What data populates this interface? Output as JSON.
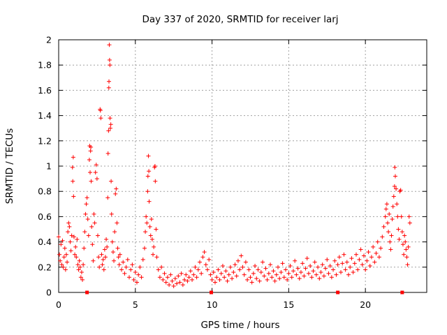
{
  "chart_data": {
    "type": "scatter",
    "title": "Day 337 of 2020, SRMTID for receiver larj",
    "xlabel": "GPS time / hours",
    "ylabel": "SRMTID / TECUs",
    "xlim": [
      0,
      24
    ],
    "ylim": [
      0,
      2
    ],
    "xticks": [
      0,
      5,
      10,
      15,
      20
    ],
    "xtick_labels": [
      "0",
      "5",
      "10",
      "15",
      "20"
    ],
    "yticks": [
      0,
      0.2,
      0.4,
      0.6,
      0.8,
      1.0,
      1.2,
      1.4,
      1.6,
      1.8,
      2.0
    ],
    "ytick_labels": [
      "0",
      "0.2",
      "0.4",
      "0.6",
      "0.8",
      "1",
      "1.2",
      "1.4",
      "1.6",
      "1.8",
      "2"
    ],
    "grid": true,
    "marker": "+",
    "color": "#ff0000",
    "x_axis_markers": [
      1.85,
      9.95,
      18.2,
      22.4
    ],
    "series": [
      {
        "name": "SRMTID",
        "points": [
          [
            0.0,
            0.44
          ],
          [
            0.05,
            0.3
          ],
          [
            0.1,
            0.25
          ],
          [
            0.15,
            0.38
          ],
          [
            0.2,
            0.22
          ],
          [
            0.25,
            0.41
          ],
          [
            0.3,
            0.2
          ],
          [
            0.35,
            0.28
          ],
          [
            0.4,
            0.35
          ],
          [
            0.45,
            0.18
          ],
          [
            0.5,
            0.3
          ],
          [
            0.55,
            0.24
          ],
          [
            0.6,
            0.48
          ],
          [
            0.65,
            0.55
          ],
          [
            0.7,
            0.52
          ],
          [
            0.75,
            0.4
          ],
          [
            0.8,
            0.33
          ],
          [
            0.85,
            0.45
          ],
          [
            0.9,
            0.99
          ],
          [
            0.92,
            0.88
          ],
          [
            0.95,
            1.07
          ],
          [
            0.97,
            0.76
          ],
          [
            1.0,
            0.44
          ],
          [
            1.05,
            0.3
          ],
          [
            1.1,
            0.36
          ],
          [
            1.15,
            0.28
          ],
          [
            1.2,
            0.42
          ],
          [
            1.25,
            0.22
          ],
          [
            1.3,
            0.18
          ],
          [
            1.35,
            0.25
          ],
          [
            1.4,
            0.2
          ],
          [
            1.45,
            0.12
          ],
          [
            1.5,
            0.16
          ],
          [
            1.55,
            0.1
          ],
          [
            1.6,
            0.22
          ],
          [
            1.65,
            0.35
          ],
          [
            1.7,
            0.48
          ],
          [
            1.75,
            0.62
          ],
          [
            1.8,
            0.7
          ],
          [
            1.85,
            0.75
          ],
          [
            1.9,
            0.58
          ],
          [
            1.95,
            0.45
          ],
          [
            2.0,
            1.05
          ],
          [
            2.02,
            1.16
          ],
          [
            2.05,
            0.95
          ],
          [
            2.08,
            1.12
          ],
          [
            2.1,
            1.15
          ],
          [
            2.12,
            0.88
          ],
          [
            2.15,
            0.52
          ],
          [
            2.2,
            0.38
          ],
          [
            2.25,
            0.25
          ],
          [
            2.3,
            0.62
          ],
          [
            2.35,
            0.55
          ],
          [
            2.4,
            0.95
          ],
          [
            2.45,
            1.01
          ],
          [
            2.5,
            0.9
          ],
          [
            2.55,
            0.45
          ],
          [
            2.6,
            0.28
          ],
          [
            2.65,
            0.2
          ],
          [
            2.7,
            1.45
          ],
          [
            2.72,
            1.44
          ],
          [
            2.75,
            1.38
          ],
          [
            2.8,
            0.3
          ],
          [
            2.85,
            0.22
          ],
          [
            2.9,
            0.26
          ],
          [
            2.95,
            0.18
          ],
          [
            3.0,
            0.34
          ],
          [
            3.05,
            0.28
          ],
          [
            3.1,
            0.42
          ],
          [
            3.15,
            0.36
          ],
          [
            3.2,
            0.75
          ],
          [
            3.22,
            1.1
          ],
          [
            3.25,
            1.28
          ],
          [
            3.27,
            1.62
          ],
          [
            3.28,
            1.67
          ],
          [
            3.3,
            1.96
          ],
          [
            3.32,
            1.84
          ],
          [
            3.34,
            1.8
          ],
          [
            3.35,
            1.38
          ],
          [
            3.37,
            1.3
          ],
          [
            3.4,
            1.33
          ],
          [
            3.42,
            0.88
          ],
          [
            3.45,
            0.62
          ],
          [
            3.5,
            0.4
          ],
          [
            3.55,
            0.32
          ],
          [
            3.6,
            0.25
          ],
          [
            3.65,
            0.48
          ],
          [
            3.7,
            0.78
          ],
          [
            3.75,
            0.82
          ],
          [
            3.8,
            0.55
          ],
          [
            3.85,
            0.35
          ],
          [
            3.9,
            0.28
          ],
          [
            3.95,
            0.22
          ],
          [
            4.0,
            0.3
          ],
          [
            4.1,
            0.18
          ],
          [
            4.2,
            0.24
          ],
          [
            4.3,
            0.15
          ],
          [
            4.4,
            0.2
          ],
          [
            4.5,
            0.26
          ],
          [
            4.6,
            0.12
          ],
          [
            4.7,
            0.18
          ],
          [
            4.8,
            0.22
          ],
          [
            4.9,
            0.1
          ],
          [
            5.0,
            0.16
          ],
          [
            5.1,
            0.08
          ],
          [
            5.2,
            0.14
          ],
          [
            5.3,
            0.2
          ],
          [
            5.4,
            0.12
          ],
          [
            5.5,
            0.26
          ],
          [
            5.6,
            0.35
          ],
          [
            5.65,
            0.48
          ],
          [
            5.7,
            0.6
          ],
          [
            5.75,
            0.55
          ],
          [
            5.8,
            0.8
          ],
          [
            5.82,
            0.92
          ],
          [
            5.85,
            1.08
          ],
          [
            5.88,
            0.96
          ],
          [
            5.9,
            0.72
          ],
          [
            5.95,
            0.52
          ],
          [
            6.0,
            0.45
          ],
          [
            6.05,
            0.58
          ],
          [
            6.1,
            0.42
          ],
          [
            6.15,
            0.3
          ],
          [
            6.2,
            0.36
          ],
          [
            6.25,
            0.99
          ],
          [
            6.28,
            1.0
          ],
          [
            6.3,
            0.88
          ],
          [
            6.35,
            0.5
          ],
          [
            6.4,
            0.28
          ],
          [
            6.5,
            0.18
          ],
          [
            6.6,
            0.12
          ],
          [
            6.7,
            0.2
          ],
          [
            6.8,
            0.1
          ],
          [
            6.9,
            0.15
          ],
          [
            7.0,
            0.08
          ],
          [
            7.1,
            0.12
          ],
          [
            7.2,
            0.06
          ],
          [
            7.3,
            0.14
          ],
          [
            7.4,
            0.09
          ],
          [
            7.5,
            0.05
          ],
          [
            7.6,
            0.11
          ],
          [
            7.7,
            0.07
          ],
          [
            7.8,
            0.13
          ],
          [
            7.9,
            0.08
          ],
          [
            8.0,
            0.15
          ],
          [
            8.1,
            0.06
          ],
          [
            8.2,
            0.1
          ],
          [
            8.3,
            0.14
          ],
          [
            8.4,
            0.09
          ],
          [
            8.5,
            0.12
          ],
          [
            8.6,
            0.17
          ],
          [
            8.7,
            0.1
          ],
          [
            8.8,
            0.14
          ],
          [
            8.9,
            0.2
          ],
          [
            9.0,
            0.12
          ],
          [
            9.1,
            0.18
          ],
          [
            9.2,
            0.24
          ],
          [
            9.3,
            0.15
          ],
          [
            9.4,
            0.28
          ],
          [
            9.5,
            0.32
          ],
          [
            9.6,
            0.22
          ],
          [
            9.7,
            0.18
          ],
          [
            9.8,
            0.26
          ],
          [
            9.9,
            0.14
          ],
          [
            10.0,
            0.1
          ],
          [
            10.1,
            0.16
          ],
          [
            10.2,
            0.08
          ],
          [
            10.3,
            0.12
          ],
          [
            10.4,
            0.18
          ],
          [
            10.5,
            0.1
          ],
          [
            10.6,
            0.15
          ],
          [
            10.7,
            0.21
          ],
          [
            10.8,
            0.12
          ],
          [
            10.9,
            0.17
          ],
          [
            11.0,
            0.09
          ],
          [
            11.1,
            0.14
          ],
          [
            11.2,
            0.2
          ],
          [
            11.3,
            0.11
          ],
          [
            11.4,
            0.16
          ],
          [
            11.5,
            0.22
          ],
          [
            11.6,
            0.13
          ],
          [
            11.7,
            0.25
          ],
          [
            11.8,
            0.18
          ],
          [
            11.9,
            0.29
          ],
          [
            12.0,
            0.2
          ],
          [
            12.1,
            0.14
          ],
          [
            12.2,
            0.24
          ],
          [
            12.3,
            0.1
          ],
          [
            12.4,
            0.18
          ],
          [
            12.5,
            0.12
          ],
          [
            12.6,
            0.08
          ],
          [
            12.7,
            0.15
          ],
          [
            12.8,
            0.21
          ],
          [
            12.9,
            0.11
          ],
          [
            13.0,
            0.18
          ],
          [
            13.1,
            0.09
          ],
          [
            13.2,
            0.16
          ],
          [
            13.3,
            0.24
          ],
          [
            13.4,
            0.13
          ],
          [
            13.5,
            0.19
          ],
          [
            13.6,
            0.1
          ],
          [
            13.7,
            0.15
          ],
          [
            13.8,
            0.22
          ],
          [
            13.9,
            0.12
          ],
          [
            14.0,
            0.17
          ],
          [
            14.1,
            0.09
          ],
          [
            14.2,
            0.14
          ],
          [
            14.3,
            0.2
          ],
          [
            14.4,
            0.11
          ],
          [
            14.5,
            0.16
          ],
          [
            14.6,
            0.23
          ],
          [
            14.7,
            0.12
          ],
          [
            14.8,
            0.18
          ],
          [
            14.9,
            0.1
          ],
          [
            15.0,
            0.15
          ],
          [
            15.1,
            0.21
          ],
          [
            15.2,
            0.12
          ],
          [
            15.3,
            0.17
          ],
          [
            15.4,
            0.25
          ],
          [
            15.5,
            0.14
          ],
          [
            15.6,
            0.19
          ],
          [
            15.7,
            0.11
          ],
          [
            15.8,
            0.16
          ],
          [
            15.9,
            0.23
          ],
          [
            16.0,
            0.13
          ],
          [
            16.1,
            0.19
          ],
          [
            16.2,
            0.27
          ],
          [
            16.3,
            0.15
          ],
          [
            16.4,
            0.21
          ],
          [
            16.5,
            0.12
          ],
          [
            16.6,
            0.17
          ],
          [
            16.7,
            0.24
          ],
          [
            16.8,
            0.14
          ],
          [
            16.9,
            0.2
          ],
          [
            17.0,
            0.11
          ],
          [
            17.1,
            0.16
          ],
          [
            17.2,
            0.22
          ],
          [
            17.3,
            0.13
          ],
          [
            17.4,
            0.19
          ],
          [
            17.5,
            0.26
          ],
          [
            17.6,
            0.15
          ],
          [
            17.7,
            0.21
          ],
          [
            17.8,
            0.12
          ],
          [
            17.9,
            0.18
          ],
          [
            18.0,
            0.25
          ],
          [
            18.1,
            0.14
          ],
          [
            18.2,
            0.22
          ],
          [
            18.3,
            0.28
          ],
          [
            18.4,
            0.16
          ],
          [
            18.5,
            0.23
          ],
          [
            18.6,
            0.3
          ],
          [
            18.7,
            0.18
          ],
          [
            18.8,
            0.24
          ],
          [
            18.9,
            0.14
          ],
          [
            19.0,
            0.2
          ],
          [
            19.1,
            0.27
          ],
          [
            19.2,
            0.16
          ],
          [
            19.3,
            0.23
          ],
          [
            19.4,
            0.3
          ],
          [
            19.5,
            0.18
          ],
          [
            19.6,
            0.26
          ],
          [
            19.7,
            0.34
          ],
          [
            19.8,
            0.22
          ],
          [
            19.9,
            0.29
          ],
          [
            20.0,
            0.18
          ],
          [
            20.1,
            0.25
          ],
          [
            20.2,
            0.32
          ],
          [
            20.3,
            0.21
          ],
          [
            20.4,
            0.28
          ],
          [
            20.5,
            0.36
          ],
          [
            20.6,
            0.24
          ],
          [
            20.7,
            0.31
          ],
          [
            20.8,
            0.4
          ],
          [
            20.9,
            0.28
          ],
          [
            21.0,
            0.35
          ],
          [
            21.1,
            0.44
          ],
          [
            21.2,
            0.52
          ],
          [
            21.3,
            0.6
          ],
          [
            21.35,
            0.66
          ],
          [
            21.4,
            0.7
          ],
          [
            21.45,
            0.55
          ],
          [
            21.5,
            0.48
          ],
          [
            21.55,
            0.62
          ],
          [
            21.6,
            0.4
          ],
          [
            21.65,
            0.34
          ],
          [
            21.7,
            0.45
          ],
          [
            21.75,
            0.58
          ],
          [
            21.8,
            0.68
          ],
          [
            21.85,
            0.76
          ],
          [
            21.9,
            0.84
          ],
          [
            21.92,
            0.99
          ],
          [
            21.95,
            0.92
          ],
          [
            22.0,
            0.82
          ],
          [
            22.05,
            0.7
          ],
          [
            22.1,
            0.6
          ],
          [
            22.15,
            0.5
          ],
          [
            22.2,
            0.42
          ],
          [
            22.25,
            0.8
          ],
          [
            22.3,
            0.81
          ],
          [
            22.35,
            0.6
          ],
          [
            22.4,
            0.48
          ],
          [
            22.45,
            0.38
          ],
          [
            22.5,
            0.3
          ],
          [
            22.55,
            0.45
          ],
          [
            22.6,
            0.4
          ],
          [
            22.65,
            0.34
          ],
          [
            22.7,
            0.28
          ],
          [
            22.75,
            0.22
          ],
          [
            22.8,
            0.36
          ],
          [
            22.85,
            0.6
          ],
          [
            22.9,
            0.55
          ]
        ]
      }
    ]
  }
}
